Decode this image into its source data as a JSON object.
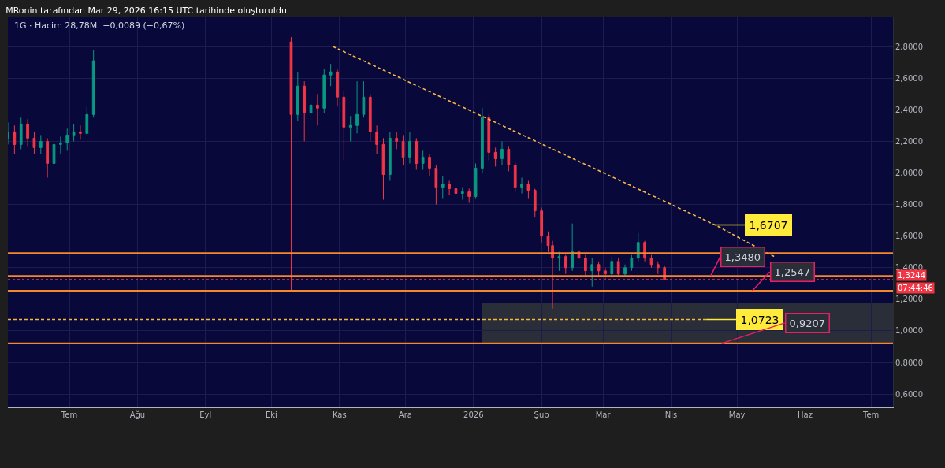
{
  "chart_data": {
    "type": "candlestick",
    "title": "MRonin tarafından Mar 29, 2026 16:15 UTC tarihinde oluşturuldu",
    "subtitle": "1G · Hacim 28,78M  −0,0089 (−0,67%)",
    "xlim": [
      "2025-06-03",
      "2026-07-11"
    ],
    "xticks": [
      {
        "value": "2025-07-01",
        "label": "Tem"
      },
      {
        "value": "2025-08-01",
        "label": "Ağu"
      },
      {
        "value": "2025-09-01",
        "label": "Eyl"
      },
      {
        "value": "2025-10-01",
        "label": "Eki"
      },
      {
        "value": "2025-11-01",
        "label": "Kas"
      },
      {
        "value": "2025-12-01",
        "label": "Ara"
      },
      {
        "value": "2026-01-01",
        "label": "2026"
      },
      {
        "value": "2026-02-01",
        "label": "Şub"
      },
      {
        "value": "2026-03-01",
        "label": "Mar"
      },
      {
        "value": "2026-04-01",
        "label": "Nis"
      },
      {
        "value": "2026-05-01",
        "label": "May"
      },
      {
        "value": "2026-06-01",
        "label": "Haz"
      },
      {
        "value": "2026-07-01",
        "label": "Tem"
      }
    ],
    "ylim": [
      0.516,
      2.985
    ],
    "yticks": [
      {
        "value": 0.6,
        "label": "0,6000"
      },
      {
        "value": 0.8,
        "label": "0,8000"
      },
      {
        "value": 1.0,
        "label": "1,0000"
      },
      {
        "value": 1.2,
        "label": "1,2000"
      },
      {
        "value": 1.4,
        "label": "1,4000"
      },
      {
        "value": 1.6,
        "label": "1,6000"
      },
      {
        "value": 1.8,
        "label": "1,8000"
      },
      {
        "value": 2.0,
        "label": "2,0000"
      },
      {
        "value": 2.2,
        "label": "2,2000"
      },
      {
        "value": 2.4,
        "label": "2,4000"
      },
      {
        "value": 2.6,
        "label": "2,6000"
      },
      {
        "value": 2.8,
        "label": "2,8000"
      }
    ],
    "grid": true,
    "series": [
      {
        "type": "line",
        "x": [
          "2026-01-05",
          "2026-07-11"
        ],
        "values": [
          null,
          null
        ],
        "lower": [
          0.9207,
          0.9207
        ],
        "upper": [
          1.174,
          1.174
        ],
        "color": "#2a2e39"
      },
      {
        "x": [
          "2025-06-03",
          "2025-06-06",
          "2025-06-09",
          "2025-06-12",
          "2025-06-15",
          "2025-06-18",
          "2025-06-21",
          "2025-06-24",
          "2025-06-27",
          "2025-06-30",
          "2025-07-03",
          "2025-07-06",
          "2025-07-09",
          "2025-07-12",
          "2025-10-10",
          "2025-10-13",
          "2025-10-16",
          "2025-10-19",
          "2025-10-22",
          "2025-10-25",
          "2025-10-28",
          "2025-10-31",
          "2025-11-03",
          "2025-11-06",
          "2025-11-09",
          "2025-11-12",
          "2025-11-15",
          "2025-11-18",
          "2025-11-21",
          "2025-11-24",
          "2025-11-27",
          "2025-11-30",
          "2025-12-03",
          "2025-12-06",
          "2025-12-09",
          "2025-12-12",
          "2025-12-15",
          "2025-12-18",
          "2025-12-21",
          "2025-12-24",
          "2025-12-27",
          "2025-12-30",
          "2026-01-02",
          "2026-01-05",
          "2026-01-08",
          "2026-01-11",
          "2026-01-14",
          "2026-01-17",
          "2026-01-20",
          "2026-01-23",
          "2026-01-26",
          "2026-01-29",
          "2026-02-01",
          "2026-02-04",
          "2026-02-06",
          "2026-02-09",
          "2026-02-12",
          "2026-02-15",
          "2026-02-18",
          "2026-02-21",
          "2026-02-24",
          "2026-02-27",
          "2026-03-02",
          "2026-03-05",
          "2026-03-08",
          "2026-03-11",
          "2026-03-14",
          "2026-03-17",
          "2026-03-20",
          "2026-03-23",
          "2026-03-26",
          "2026-03-29"
        ],
        "ohlc": [
          [
            2.22,
            2.32,
            2.18,
            2.26
          ],
          [
            2.26,
            2.3,
            2.12,
            2.18
          ],
          [
            2.18,
            2.35,
            2.15,
            2.31
          ],
          [
            2.31,
            2.34,
            2.17,
            2.22
          ],
          [
            2.22,
            2.26,
            2.12,
            2.16
          ],
          [
            2.16,
            2.24,
            2.12,
            2.2
          ],
          [
            2.2,
            2.22,
            1.97,
            2.06
          ],
          [
            2.06,
            2.22,
            2.02,
            2.18
          ],
          [
            2.18,
            2.23,
            2.12,
            2.19
          ],
          [
            2.19,
            2.28,
            2.14,
            2.24
          ],
          [
            2.24,
            2.31,
            2.2,
            2.26
          ],
          [
            2.26,
            2.3,
            2.21,
            2.25
          ],
          [
            2.25,
            2.42,
            2.24,
            2.37
          ],
          [
            2.37,
            2.78,
            2.35,
            2.71
          ],
          [
            2.83,
            2.86,
            1.25,
            2.37
          ],
          [
            2.37,
            2.64,
            2.33,
            2.55
          ],
          [
            2.55,
            2.58,
            2.2,
            2.38
          ],
          [
            2.38,
            2.48,
            2.32,
            2.43
          ],
          [
            2.43,
            2.5,
            2.3,
            2.41
          ],
          [
            2.41,
            2.66,
            2.38,
            2.62
          ],
          [
            2.62,
            2.69,
            2.55,
            2.64
          ],
          [
            2.64,
            2.66,
            2.42,
            2.48
          ],
          [
            2.48,
            2.52,
            2.08,
            2.29
          ],
          [
            2.29,
            2.36,
            2.2,
            2.3
          ],
          [
            2.3,
            2.58,
            2.25,
            2.37
          ],
          [
            2.37,
            2.58,
            2.35,
            2.48
          ],
          [
            2.48,
            2.5,
            2.2,
            2.26
          ],
          [
            2.26,
            2.3,
            2.12,
            2.18
          ],
          [
            2.18,
            2.22,
            1.83,
            1.99
          ],
          [
            1.99,
            2.26,
            1.95,
            2.22
          ],
          [
            2.22,
            2.26,
            2.15,
            2.2
          ],
          [
            2.2,
            2.24,
            2.05,
            2.1
          ],
          [
            2.1,
            2.26,
            2.06,
            2.2
          ],
          [
            2.2,
            2.22,
            2.02,
            2.06
          ],
          [
            2.06,
            2.14,
            2.02,
            2.1
          ],
          [
            2.1,
            2.12,
            1.98,
            2.03
          ],
          [
            2.03,
            2.05,
            1.8,
            1.91
          ],
          [
            1.91,
            1.98,
            1.84,
            1.93
          ],
          [
            1.93,
            1.95,
            1.86,
            1.9
          ],
          [
            1.9,
            1.92,
            1.84,
            1.87
          ],
          [
            1.87,
            1.91,
            1.83,
            1.88
          ],
          [
            1.88,
            1.9,
            1.81,
            1.85
          ],
          [
            1.85,
            2.06,
            1.84,
            2.03
          ],
          [
            2.03,
            2.41,
            2.0,
            2.35
          ],
          [
            2.35,
            2.37,
            2.08,
            2.13
          ],
          [
            2.13,
            2.16,
            2.04,
            2.09
          ],
          [
            2.09,
            2.2,
            2.05,
            2.15
          ],
          [
            2.15,
            2.17,
            2.01,
            2.05
          ],
          [
            2.05,
            2.07,
            1.88,
            1.91
          ],
          [
            1.91,
            1.97,
            1.87,
            1.93
          ],
          [
            1.93,
            1.95,
            1.84,
            1.89
          ],
          [
            1.89,
            1.9,
            1.72,
            1.76
          ],
          [
            1.76,
            1.78,
            1.56,
            1.6
          ],
          [
            1.6,
            1.63,
            1.5,
            1.54
          ],
          [
            1.54,
            1.57,
            1.14,
            1.46
          ],
          [
            1.46,
            1.5,
            1.38,
            1.47
          ],
          [
            1.47,
            1.48,
            1.36,
            1.4
          ],
          [
            1.4,
            1.68,
            1.38,
            1.5
          ],
          [
            1.5,
            1.52,
            1.42,
            1.46
          ],
          [
            1.46,
            1.48,
            1.35,
            1.38
          ],
          [
            1.38,
            1.46,
            1.28,
            1.42
          ],
          [
            1.42,
            1.44,
            1.34,
            1.38
          ],
          [
            1.38,
            1.4,
            1.33,
            1.36
          ],
          [
            1.36,
            1.47,
            1.34,
            1.44
          ],
          [
            1.44,
            1.46,
            1.34,
            1.36
          ],
          [
            1.36,
            1.42,
            1.34,
            1.4
          ],
          [
            1.4,
            1.48,
            1.38,
            1.46
          ],
          [
            1.46,
            1.62,
            1.44,
            1.56
          ],
          [
            1.56,
            1.57,
            1.44,
            1.46
          ],
          [
            1.46,
            1.48,
            1.4,
            1.42
          ],
          [
            1.42,
            1.44,
            1.36,
            1.4
          ],
          [
            1.4,
            1.41,
            1.32,
            1.3244
          ]
        ],
        "colors": [
          "#089981",
          "#f23645",
          "#089981",
          "#f23645",
          "#f23645",
          "#089981",
          "#f23645",
          "#089981",
          "#089981",
          "#089981",
          "#089981",
          "#f23645",
          "#089981",
          "#089981",
          "#f23645",
          "#089981",
          "#f23645",
          "#089981",
          "#f23645",
          "#089981",
          "#089981",
          "#f23645",
          "#f23645",
          "#089981",
          "#089981",
          "#089981",
          "#f23645",
          "#f23645",
          "#f23645",
          "#089981",
          "#f23645",
          "#f23645",
          "#089981",
          "#f23645",
          "#089981",
          "#f23645",
          "#f23645",
          "#089981",
          "#f23645",
          "#f23645",
          "#089981",
          "#f23645",
          "#089981",
          "#089981",
          "#f23645",
          "#f23645",
          "#089981",
          "#f23645",
          "#f23645",
          "#089981",
          "#f23645",
          "#f23645",
          "#f23645",
          "#f23645",
          "#f23645",
          "#089981",
          "#f23645",
          "#089981",
          "#f23645",
          "#f23645",
          "#089981",
          "#f23645",
          "#f23645",
          "#089981",
          "#f23645",
          "#089981",
          "#089981",
          "#089981",
          "#f23645",
          "#f23645",
          "#f23645",
          "#f23645"
        ]
      },
      {
        "type": "line",
        "x": [
          "2025-10-29",
          "2026-04-21",
          "2026-05-18"
        ],
        "values": [
          2.8,
          1.6707,
          1.47
        ],
        "color": "#f5b942",
        "line_style": "dashed"
      },
      {
        "type": "line",
        "x": [
          "2025-06-03",
          "2026-04-17"
        ],
        "values": [
          1.0723,
          1.0723
        ],
        "color": "#f5b942",
        "line_style": "dashed"
      }
    ],
    "ref_lines": [
      {
        "axis": "y",
        "value": 1.493,
        "color": "#f5872d",
        "line_style": "solid"
      },
      {
        "axis": "y",
        "value": 1.348,
        "color": "#f5872d",
        "line_style": "solid"
      },
      {
        "axis": "y",
        "value": 1.2547,
        "color": "#f5872d",
        "line_style": "solid"
      },
      {
        "axis": "y",
        "value": 0.9207,
        "color": "#f5872d",
        "line_style": "solid"
      },
      {
        "axis": "y",
        "value": 1.3244,
        "color": "#f23645",
        "line_style": "dotted",
        "label": "1,3244"
      }
    ],
    "annotations": [
      {
        "text": "1,6707",
        "x": "2026-04-21",
        "y": 1.6707
      },
      {
        "text": "1,3480",
        "x": "2026-04-19",
        "y": 1.348
      },
      {
        "text": "1,2547",
        "x": "2026-05-08",
        "y": 1.2547
      },
      {
        "text": "1,0723",
        "x": "2026-04-17",
        "y": 1.0723
      },
      {
        "text": "0,9207",
        "x": "2026-04-24",
        "y": 0.9207
      },
      "07:44:46"
    ]
  }
}
